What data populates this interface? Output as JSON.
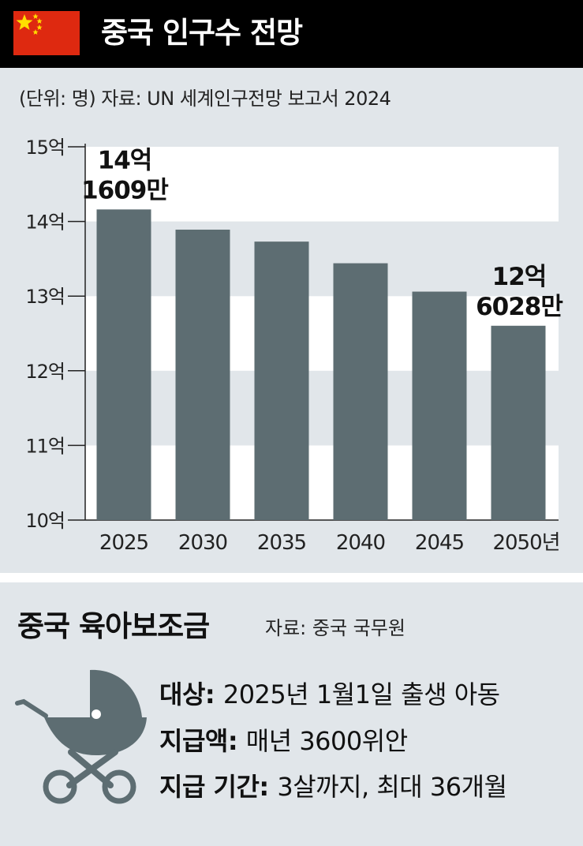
{
  "header": {
    "title": "중국 인구수 전망",
    "flag_colors": {
      "field": "#de2910",
      "stars": "#ffde00"
    }
  },
  "chart_meta": {
    "unit_source": "(단위: 명)  자료: UN 세계인구전망 보고서 2024"
  },
  "chart_data": {
    "type": "bar",
    "categories": [
      "2025",
      "2030",
      "2035",
      "2040",
      "2045",
      "2050"
    ],
    "x_suffix": "년",
    "values": [
      1416090000,
      1389000000,
      1373000000,
      1344000000,
      1306000000,
      1260280000
    ],
    "ylim": [
      1000000000,
      1500000000
    ],
    "yticks": [
      1000000000,
      1100000000,
      1200000000,
      1300000000,
      1400000000,
      1500000000
    ],
    "ytick_labels": [
      "10억",
      "11억",
      "12억",
      "13억",
      "14억",
      "15억"
    ],
    "annotations": [
      {
        "index": 0,
        "line1": "14억",
        "line2": "1609만"
      },
      {
        "index": 5,
        "line1": "12억",
        "line2": "6028만"
      }
    ],
    "bar_color": "#5d6d72",
    "band_colors": [
      "#ffffff",
      "#e1e6ea"
    ],
    "grid": false
  },
  "subsidy": {
    "title": "중국 육아보조금",
    "source": "자료: 중국 국무원",
    "icon": "baby-stroller-icon",
    "icon_color": "#5d6d72",
    "rows": [
      {
        "label": "대상",
        "value": "2025년 1월1일 출생 아동"
      },
      {
        "label": "지급액",
        "value": "매년 3600위안"
      },
      {
        "label": "지급 기간",
        "value": "3살까지, 최대 36개월"
      }
    ]
  }
}
